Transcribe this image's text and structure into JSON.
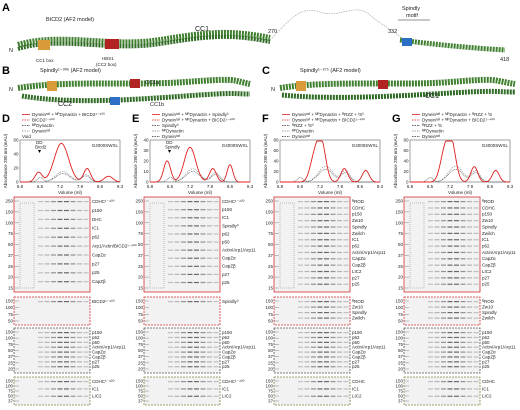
{
  "colors": {
    "helix": "#3f7f2f",
    "orange": "#d99a3a",
    "red": "#b22222",
    "blue": "#2d6fc7",
    "trace_red": "#e02020",
    "trace_dark": "#333333",
    "trace_gray": "#888888"
  },
  "panelA": {
    "letter": "A",
    "labels": {
      "bicd2": "BICD2 (AF2 model)",
      "cc1box": "CC1 box",
      "hbs1": "HBS1",
      "hbs1_sub": "(CC2 box)",
      "cc1": "CC1",
      "n": "N",
      "res270": "270",
      "res332": "332",
      "spindly_motif": "Spindly",
      "spindly_motif2": "motif",
      "res418": "418"
    }
  },
  "panelB": {
    "letter": "B",
    "labels": {
      "title": "Spindly¹⁻³⁰⁶ (AF2 model)",
      "n": "N",
      "cc1a": "CC1a",
      "cc1b": "CC1b",
      "cc2": "CC2"
    }
  },
  "panelC": {
    "letter": "C",
    "labels": {
      "title": "Spindly¹⁻²⁷⁵ (AF2 model)",
      "n": "N",
      "cc1": "CC1"
    }
  },
  "chromatograms": [
    {
      "letter": "D",
      "column": "G4000SWXL",
      "void": "Void",
      "dd": "DD",
      "dd2": "Bicd2",
      "legend": [
        "Dyneinᵗᵃⁱˡ + ᴹᴾDynactin + BICD2¹⁻⁴⁰⁰",
        "BICD2¹⁻⁴⁰⁰",
        "ᴹᴾDynactin",
        "Dyneinᵗᵃⁱˡ"
      ],
      "ylabel": "Absorbance 280 nm (mAU)",
      "xlabel": "Volume (ml)",
      "xticks": [
        "5.8",
        "6.5",
        "7.2",
        "7.9",
        "8.6",
        "9.3"
      ],
      "yticks": [
        "0",
        "20",
        "40",
        "60"
      ]
    },
    {
      "letter": "E",
      "column": "G4000SWXL",
      "dd": "DD",
      "dd2": "Spindly",
      "legend": [
        "Dyneinᵗᵃⁱˡ + ᴹᴾDynactin + Spindly⁰",
        "Dyneinᵗᵃⁱˡ + ᴹᴾDynactin + BICD2¹⁻⁴⁰⁰",
        "Spindly⁰",
        "ᴹᴾDynactin",
        "Dyneinᵗᵃⁱˡ"
      ],
      "ylabel": "Absorbance 280 nm (mAU)",
      "xlabel": "Volume (ml)",
      "xticks": [
        "5.8",
        "6.5",
        "7.2",
        "7.9",
        "8.6",
        "9.3"
      ],
      "yticks": [
        "0",
        "10",
        "20",
        "30",
        "40"
      ]
    },
    {
      "letter": "F",
      "column": "G4000SWXL",
      "legend": [
        "Dyneinᵗᵃⁱˡ + ᴹᴾDynactin + ᴿRZZ + ᶠS⁰",
        "Dyneinᵗᵃⁱˡ + ᴹᴾDynactin + BICD2¹⁻⁴⁰⁰",
        "ᴿRZZ + ᶠS⁰",
        "ᴹᴾDynactin",
        "Dyneinᵗᵃⁱˡ"
      ],
      "ylabel": "Absorbance 280 nm (mAU)",
      "xlabel": "Volume (ml)",
      "xticks": [
        "5.8",
        "6.5",
        "7.2",
        "7.9",
        "8.6",
        "9.3"
      ],
      "yticks": [
        "0",
        "20",
        "40",
        "60",
        "80"
      ]
    },
    {
      "letter": "G",
      "column": "G4000SWXL",
      "legend": [
        "Dyneinᵗᵃⁱˡ + ᴹᴾDynactin + ᴿRZZ + ᶠS",
        "Dyneinᵗᵃⁱˡ + ᴹᴾDynactin + BICD2¹⁻⁴⁰⁰",
        "ᴿRZZ + ᶠS",
        "ᴹᴾDynactin",
        "Dyneinᵗᵃⁱˡ"
      ],
      "ylabel": "Absorbance 280 nm (mAU)",
      "xlabel": "Volume (ml)",
      "xticks": [
        "5.8",
        "6.5",
        "7.2",
        "7.9",
        "8.6",
        "9.3"
      ],
      "yticks": [
        "0",
        "20",
        "40",
        "60",
        "80"
      ]
    }
  ],
  "gels": {
    "D": {
      "main": [
        "CDHC¹⁻⁴⁰⁰",
        "p150",
        "DHC",
        "IC1",
        "p62",
        "Arp1/Actin/BICD2¹⁻⁴⁰⁰",
        "CapZα",
        "p27",
        "p25",
        "CapZβ"
      ],
      "g2": [
        "BICD2¹⁻⁴⁰⁰"
      ],
      "g3": [
        "p150",
        "p62",
        "p50",
        "Actin/Arp1/Arp11",
        "CapZα",
        "CapZβ",
        "p27",
        "p25"
      ],
      "g4": [
        "CDHC¹⁻⁴⁰⁰",
        "IC1",
        "LIC2"
      ]
    },
    "E": {
      "main": [
        "CDHC¹⁻⁴⁰⁰",
        "p150",
        "IC1",
        "Spindly⁰",
        "p62",
        "p50",
        "Actin/Arp1/Arp11",
        "CapZα",
        "CapZβ",
        "p27",
        "p25"
      ],
      "g2": [
        "Spindly⁰"
      ],
      "g3": [
        "p150",
        "p62",
        "p50",
        "Actin/Arp1/Arp11",
        "CapZα",
        "CapZβ",
        "p27",
        "p25"
      ],
      "g4": [
        "CDHC¹⁻⁴⁰⁰",
        "IC1",
        "LIC2"
      ]
    },
    "F": {
      "main": [
        "ᴿROD",
        "CDHC",
        "p150",
        "Zw10",
        "Spindly",
        "Zwilch",
        "IC1",
        "p62",
        "Actin/Arp1/Arp11",
        "CapZα",
        "CapZβ",
        "LIC2",
        "p27",
        "p25"
      ],
      "g2": [
        "ᴿROD",
        "Zw10",
        "Spindly",
        "Zwilch"
      ],
      "g3": [
        "p150",
        "p62",
        "p50",
        "Actin/Arp1/Arp11",
        "CapZα",
        "CapZβ",
        "p27",
        "p25"
      ],
      "g4": [
        "CDHC",
        "IC1",
        "LIC2"
      ]
    },
    "G": {
      "main": [
        "ᴿROD",
        "CDHC",
        "p150",
        "Zw10",
        "Spindly",
        "Zwilch",
        "IC1",
        "p62",
        "Actin/Arp1/Arp11",
        "CapZα",
        "CapZβ",
        "LIC2",
        "p27",
        "p25"
      ],
      "g2": [
        "ᴿROD",
        "Zw10",
        "Spindly",
        "Zwilch"
      ],
      "g3": [
        "p150",
        "p62",
        "p50",
        "Actin/Arp1/Arp11",
        "CapZα",
        "CapZβ",
        "p27",
        "p25"
      ],
      "g4": [
        "CDHC",
        "IC1",
        "LIC2"
      ]
    }
  },
  "mw": {
    "main": [
      "250",
      "150",
      "100",
      "75",
      "50",
      "37",
      "25",
      "20",
      "15"
    ],
    "g2": [
      "150",
      "100",
      "75",
      "50"
    ],
    "g3": [
      "150",
      "100",
      "75",
      "50",
      "37",
      "25",
      "20"
    ],
    "g4": [
      "150",
      "100",
      "75",
      "50",
      "37"
    ]
  }
}
